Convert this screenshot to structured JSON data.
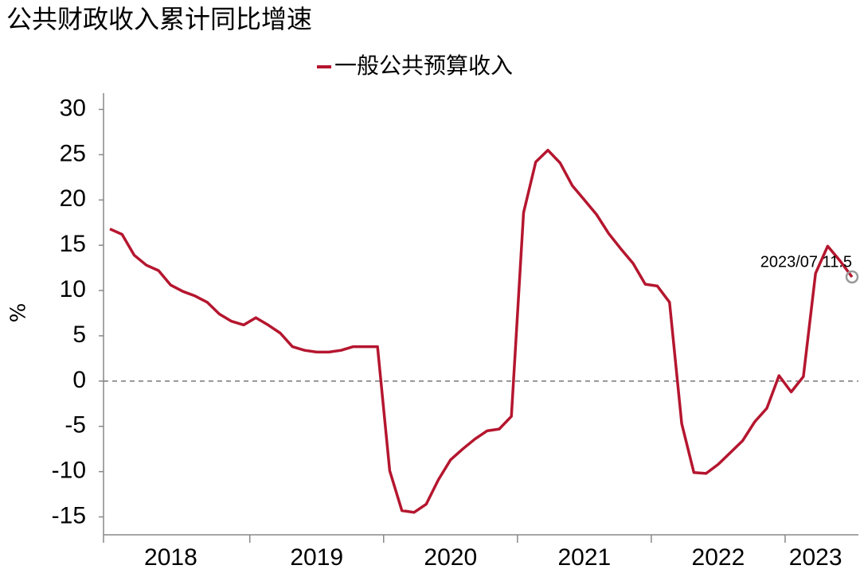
{
  "chart_data": {
    "type": "line",
    "title": "公共财政收入累计同比增速",
    "y_label": "%",
    "categories": [
      null,
      null,
      null,
      null,
      null,
      "2018",
      null,
      null,
      null,
      null,
      null,
      null,
      null,
      null,
      null,
      null,
      null,
      "2019",
      null,
      null,
      null,
      null,
      null,
      null,
      null,
      null,
      null,
      null,
      "2020",
      null,
      null,
      null,
      null,
      null,
      null,
      null,
      null,
      null,
      null,
      "2021",
      null,
      null,
      null,
      null,
      null,
      null,
      null,
      null,
      null,
      null,
      "2022",
      null,
      null,
      null,
      null,
      null,
      null,
      null,
      "2023",
      null,
      null,
      null
    ],
    "series": [
      {
        "name": "一般公共预算收入",
        "color": "#b5162f",
        "values": [
          16.8,
          16.2,
          13.9,
          12.8,
          12.2,
          10.6,
          9.9,
          9.4,
          8.7,
          7.4,
          6.6,
          6.2,
          7.0,
          6.2,
          5.3,
          3.8,
          3.4,
          3.2,
          3.2,
          3.4,
          3.8,
          3.8,
          3.8,
          -9.9,
          -14.3,
          -14.5,
          -13.6,
          -10.9,
          -8.7,
          -7.5,
          -6.4,
          -5.5,
          -5.3,
          -3.9,
          18.6,
          24.2,
          25.5,
          24.1,
          21.6,
          20.0,
          18.4,
          16.3,
          14.6,
          13.0,
          10.7,
          10.5,
          8.7,
          -4.7,
          -10.1,
          -10.2,
          -9.2,
          -7.9,
          -6.6,
          -4.5,
          -3.0,
          0.6,
          -1.2,
          0.5,
          11.9,
          14.9,
          13.3,
          11.5
        ]
      }
    ],
    "annotation": {
      "text": "2023/07  11.5",
      "index": 61
    },
    "ylim": [
      -16.8,
      31.8
    ],
    "yticks": [
      -15,
      -10,
      -5,
      0,
      5,
      10,
      15,
      20,
      25,
      30
    ],
    "zero_line": true
  }
}
